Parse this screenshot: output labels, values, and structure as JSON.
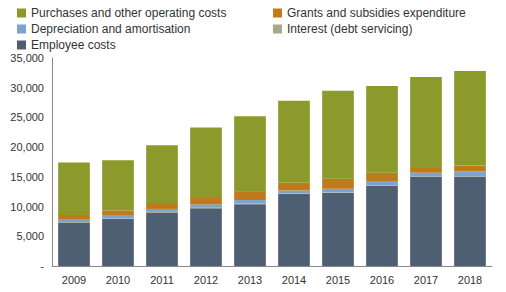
{
  "chart_data": {
    "type": "bar",
    "stacked": true,
    "grid": false,
    "legend": "top",
    "categories": [
      "2009",
      "2010",
      "2011",
      "2012",
      "2013",
      "2014",
      "2015",
      "2016",
      "2017",
      "2018"
    ],
    "series": [
      {
        "name": "Purchases and other operating costs",
        "color": "#8b9a2b",
        "values": [
          8800,
          8450,
          9700,
          11850,
          12600,
          13800,
          14800,
          14600,
          15300,
          15900
        ]
      },
      {
        "name": "Grants and subsidies expenditure",
        "color": "#c07a1b",
        "values": [
          800,
          900,
          1000,
          1100,
          1500,
          1300,
          1700,
          1400,
          800,
          1000
        ]
      },
      {
        "name": "Depreciation and amortisation",
        "color": "#7ba3d0",
        "values": [
          400,
          450,
          500,
          550,
          600,
          500,
          600,
          700,
          600,
          800
        ]
      },
      {
        "name": "Interest (debt servicing)",
        "color": "#a8a88a",
        "values": [
          100,
          100,
          100,
          100,
          100,
          100,
          100,
          100,
          100,
          100
        ]
      },
      {
        "name": "Employee costs",
        "color": "#4e5f73",
        "values": [
          7300,
          7900,
          9000,
          9700,
          10400,
          12100,
          12300,
          13500,
          15000,
          15000
        ]
      }
    ],
    "ylim": [
      0,
      35000
    ],
    "yticks": [
      {
        "value": 0,
        "label": "-"
      },
      {
        "value": 5000,
        "label": "5,000"
      },
      {
        "value": 10000,
        "label": "10,000"
      },
      {
        "value": 15000,
        "label": "15,000"
      },
      {
        "value": 20000,
        "label": "20,000"
      },
      {
        "value": 25000,
        "label": "25,000"
      },
      {
        "value": 30000,
        "label": "30,000"
      },
      {
        "value": 35000,
        "label": "35,000"
      }
    ]
  }
}
